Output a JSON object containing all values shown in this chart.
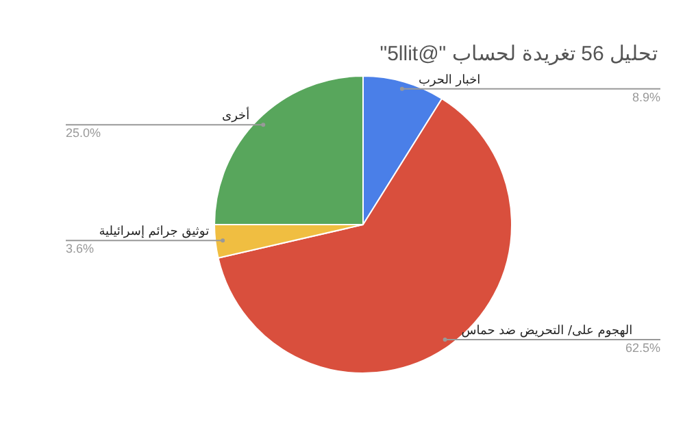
{
  "chart_data": {
    "type": "pie",
    "title": "تحليل 56 تغريدة لحساب \"@5llit\"",
    "categories": [
      "اخبار الحرب",
      "الهجوم على/ التحريض ضد حماس",
      "توثيق جرائم إسرائيلية",
      "أخرى"
    ],
    "values": [
      8.9,
      62.5,
      3.6,
      25.0
    ],
    "value_labels": [
      "8.9%",
      "62.5%",
      "3.6%",
      "25.0%"
    ],
    "colors": [
      "#4a7fe8",
      "#d94f3d",
      "#f0be41",
      "#58a65c"
    ],
    "legend": false
  }
}
